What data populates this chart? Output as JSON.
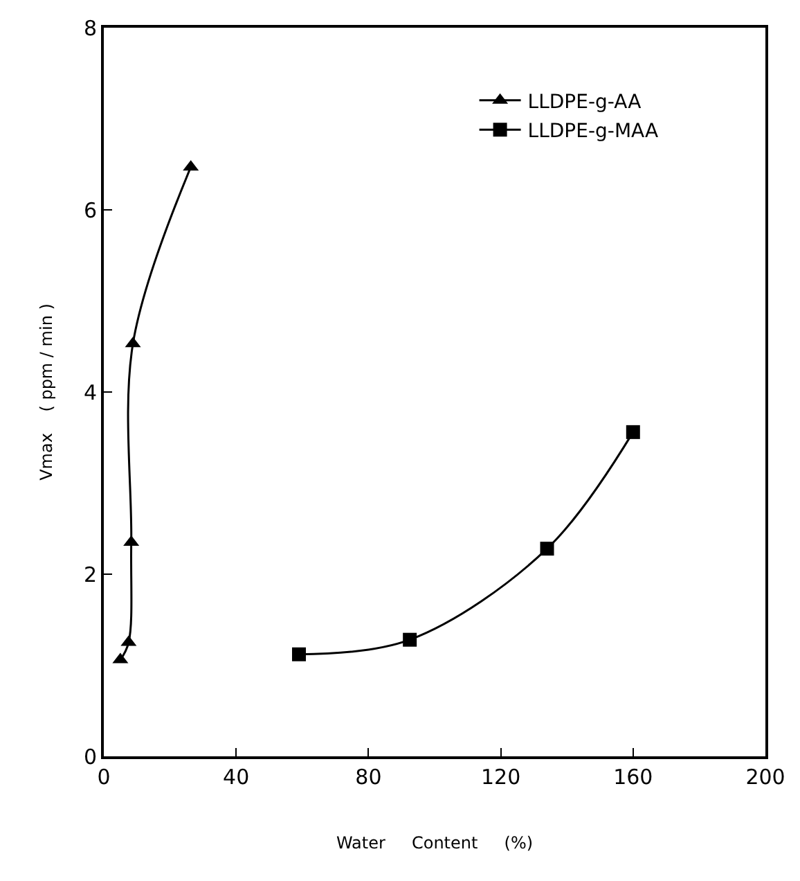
{
  "chart_data": {
    "type": "line",
    "xlabel": "Water     Content     (%)",
    "ylabel": "Vmax    ( ppm / min )",
    "xlim": [
      0,
      200
    ],
    "xticks": [
      0,
      40,
      80,
      120,
      160,
      200
    ],
    "ylim": [
      0,
      8
    ],
    "yticks": [
      0,
      2,
      4,
      6,
      8
    ],
    "legend": "top right",
    "line_style": "solid",
    "series": [
      {
        "name": "LLDPE-g-AA",
        "color": "#000000",
        "marker": "triangle",
        "x": [
          5,
          7.5,
          8.3,
          8.8,
          26.3
        ],
        "values": [
          1.06,
          1.25,
          2.35,
          4.53,
          6.47
        ]
      },
      {
        "name": "LLDPE-g-MAA",
        "color": "#000000",
        "marker": "square",
        "x": [
          59,
          92.5,
          134,
          160
        ],
        "values": [
          1.12,
          1.28,
          2.28,
          3.56
        ]
      }
    ]
  }
}
